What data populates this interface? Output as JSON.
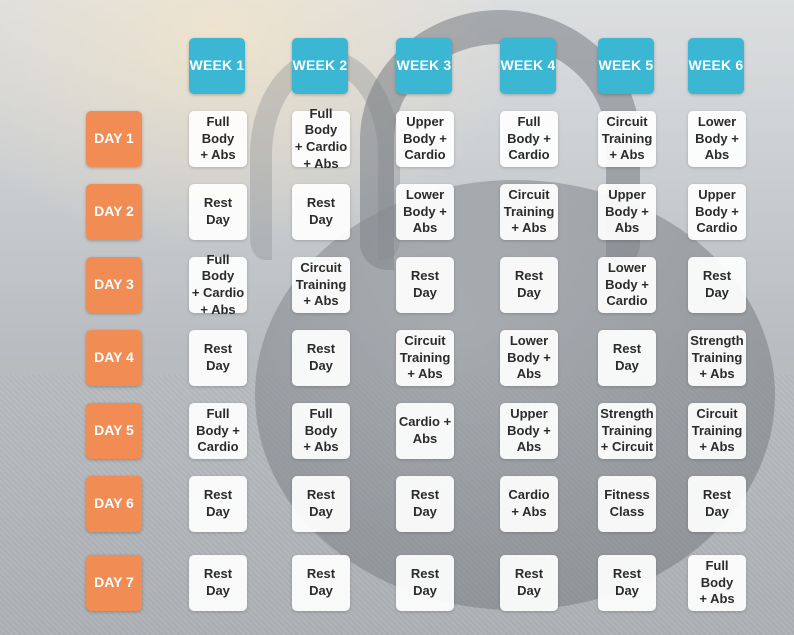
{
  "weeks": [
    "WEEK 1",
    "WEEK 2",
    "WEEK 3",
    "WEEK 4",
    "WEEK 5",
    "WEEK 6"
  ],
  "days": [
    "DAY 1",
    "DAY 2",
    "DAY 3",
    "DAY 4",
    "DAY 5",
    "DAY 6",
    "DAY 7"
  ],
  "schedule": [
    [
      "Full\nBody\n+ Abs",
      "Full Body\n+ Cardio\n+ Abs",
      "Upper\nBody +\nCardio",
      "Full\nBody +\nCardio",
      "Circuit\nTraining\n+ Abs",
      "Lower\nBody +\nAbs"
    ],
    [
      "Rest\nDay",
      "Rest\nDay",
      "Lower\nBody +\nAbs",
      "Circuit\nTraining\n+ Abs",
      "Upper\nBody +\nAbs",
      "Upper\nBody +\nCardio"
    ],
    [
      "Full Body\n+ Cardio\n+ Abs",
      "Circuit\nTraining\n+ Abs",
      "Rest\nDay",
      "Rest\nDay",
      "Lower\nBody +\nCardio",
      "Rest\nDay"
    ],
    [
      "Rest\nDay",
      "Rest\nDay",
      "Circuit\nTraining\n+ Abs",
      "Lower\nBody +\nAbs",
      "Rest\nDay",
      "Strength\nTraining\n+ Abs"
    ],
    [
      "Full\nBody +\nCardio",
      "Full\nBody\n+ Abs",
      "Cardio +\nAbs",
      "Upper\nBody +\nAbs",
      "Strength\nTraining\n+ Circuit",
      "Circuit\nTraining\n+ Abs"
    ],
    [
      "Rest\nDay",
      "Rest\nDay",
      "Rest\nDay",
      "Cardio\n+ Abs",
      "Fitness\nClass",
      "Rest\nDay"
    ],
    [
      "Rest\nDay",
      "Rest\nDay",
      "Rest\nDay",
      "Rest\nDay",
      "Rest\nDay",
      "Full\nBody\n+ Abs"
    ]
  ],
  "colors": {
    "week_header": "#3bb6d3",
    "day_label": "#f28c55",
    "cell_background": "#ffffff"
  }
}
